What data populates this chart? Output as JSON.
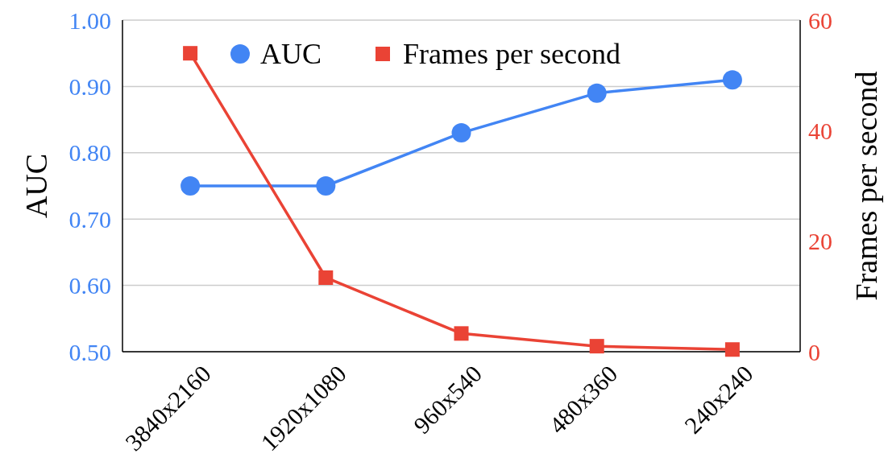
{
  "chart_data": {
    "type": "line",
    "categories": [
      "3840x2160",
      "1920x1080",
      "960x540",
      "480x360",
      "240x240"
    ],
    "series": [
      {
        "name": "AUC",
        "color": "#4285f4",
        "marker": "circle",
        "values": [
          0.75,
          0.75,
          0.83,
          0.89,
          0.91
        ]
      },
      {
        "name": "Frames per second",
        "color": "#ea4335",
        "marker": "square",
        "axis": "y2",
        "values": [
          54,
          13.4,
          3.3,
          1.0,
          0.4
        ]
      }
    ],
    "ylabel": "AUC",
    "y2label": "Frames per second",
    "ylim": [
      0.5,
      1.0
    ],
    "yticks": [
      {
        "value": 0.5,
        "label": "0.50"
      },
      {
        "value": 0.6,
        "label": "0.60"
      },
      {
        "value": 0.7,
        "label": "0.70"
      },
      {
        "value": 0.8,
        "label": "0.80"
      },
      {
        "value": 0.9,
        "label": "0.90"
      },
      {
        "value": 1.0,
        "label": "1.00"
      }
    ],
    "y2lim": [
      0,
      60
    ],
    "y2ticks": [
      0,
      20,
      40,
      60
    ],
    "grid": "y",
    "legend": "top"
  }
}
